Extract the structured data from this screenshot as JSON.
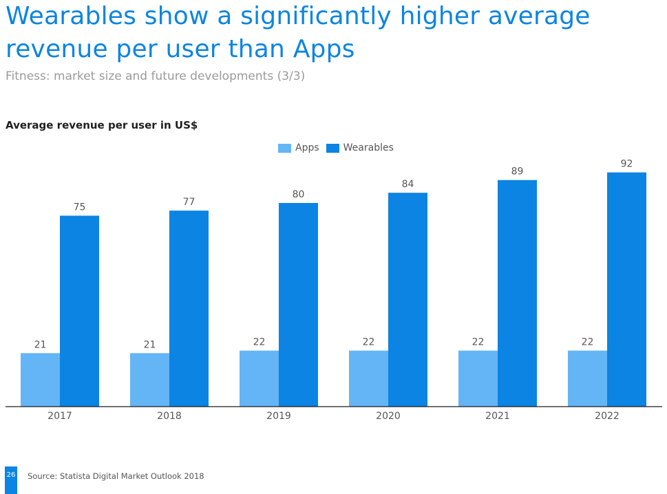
{
  "page": {
    "title": "Wearables show a significantly higher average revenue per user than Apps",
    "subtitle": "Fitness: market size and future developments (3/3)",
    "chart_label": "Average revenue per user in US$",
    "page_number": "26",
    "source": "Source: Statista Digital Market Outlook 2018"
  },
  "colors": {
    "title": "#0d85e0",
    "subtitle": "#9a9a9a",
    "apps": "#64b5f6",
    "wearables": "#0b84e3",
    "axis": "#1a1a1a",
    "label": "#555555",
    "footer_bar": "#0b84e3"
  },
  "chart_data": {
    "type": "bar",
    "title": "Average revenue per user in US$",
    "categories": [
      "2017",
      "2018",
      "2019",
      "2020",
      "2021",
      "2022"
    ],
    "series": [
      {
        "name": "Apps",
        "values": [
          21,
          21,
          22,
          22,
          22,
          22
        ],
        "labels": [
          "21",
          "21",
          "22",
          "22",
          "22",
          "22"
        ]
      },
      {
        "name": "Wearables",
        "values": [
          75,
          77,
          80,
          84,
          89,
          92
        ],
        "labels": [
          "75",
          "77",
          "80",
          "84",
          "89",
          "92"
        ]
      }
    ],
    "ylim": [
      0,
      100
    ],
    "grid": false,
    "legend": "top-center",
    "data_labels": true
  }
}
